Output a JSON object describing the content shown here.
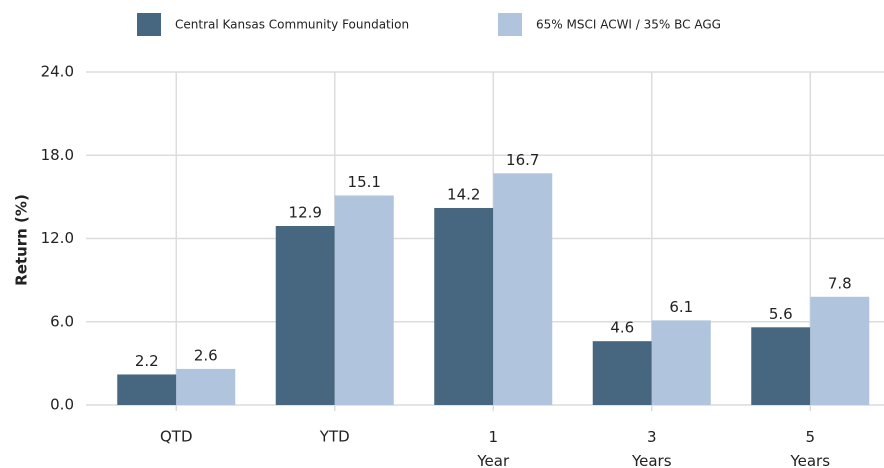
{
  "chart_data": {
    "type": "bar",
    "y_label": "Return (%)",
    "categories": [
      "QTD",
      "YTD",
      "1 Year",
      "3 Years",
      "5 Years"
    ],
    "series": [
      {
        "name": "Central Kansas Community Foundation",
        "color": "#46677f",
        "values": [
          2.2,
          12.9,
          14.2,
          4.6,
          5.6
        ]
      },
      {
        "name": "65% MSCI ACWI / 35% BC AGG",
        "color": "#b0c4de",
        "values": [
          2.6,
          15.1,
          16.7,
          6.1,
          7.8
        ]
      }
    ],
    "ylim": [
      0,
      24
    ],
    "yticks": [
      {
        "value": 0,
        "label": "0.0"
      },
      {
        "value": 6,
        "label": "6.0"
      },
      {
        "value": 12,
        "label": "12.0"
      },
      {
        "value": 18,
        "label": "18.0"
      },
      {
        "value": 24,
        "label": "24.0"
      }
    ],
    "grid": true,
    "legend": "top"
  }
}
